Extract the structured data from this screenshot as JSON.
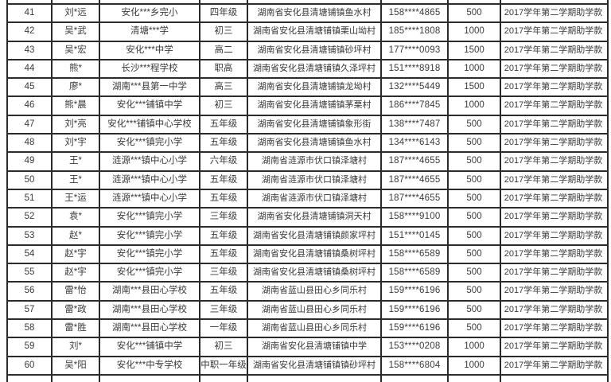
{
  "colors": {
    "table_border": "#2b2b2b",
    "cell_background": "#ffffff",
    "text": "#3a3a3a"
  },
  "table": {
    "row_count": 20,
    "remark_text": "2017学年第二学期助学款",
    "rows": [
      [
        "41",
        "刘*远",
        "安化***乡完小",
        "四年级",
        "湖南省安化县清塘铺镇鱼水村",
        "158****4865",
        "500",
        "2017学年第二学期助学款"
      ],
      [
        "42",
        "吴*武",
        "清塘***学",
        "初三",
        "湖南省安化县清塘铺镇栗山坳村",
        "185****1808",
        "1000",
        "2017学年第二学期助学款"
      ],
      [
        "43",
        "吴*宏",
        "安化***中学",
        "高二",
        "湖南省安化县清塘铺镇砂坪村",
        "177****0093",
        "1500",
        "2017学年第二学期助学款"
      ],
      [
        "44",
        "熊*",
        "长沙***程学校",
        "职高",
        "湖南省安化县清塘铺镇久泽坪村",
        "151****8918",
        "1000",
        "2017学年第二学期助学款"
      ],
      [
        "45",
        "廖*",
        "湖南***县第一中学",
        "高三",
        "湖南省安化县清塘铺镇龙坳村",
        "132****5449",
        "1500",
        "2017学年第二学期助学款"
      ],
      [
        "46",
        "熊*晨",
        "安化***铺镇中学",
        "初三",
        "湖南省安化县清塘铺镇茅栗村",
        "186****7845",
        "1000",
        "2017学年第二学期助学款"
      ],
      [
        "47",
        "刘*亮",
        "安化***铺镇中心学校",
        "五年级",
        "湖南省安化县清塘铺镇象形街",
        "138****7487",
        "500",
        "2017学年第二学期助学款"
      ],
      [
        "48",
        "刘*宇",
        "安化***镇完小学",
        "五年级",
        "湖南省安化县清塘铺镇鱼水村",
        "134****6143",
        "500",
        "2017学年第二学期助学款"
      ],
      [
        "49",
        "王*",
        "涟源***镇中心小学",
        "六年级",
        "湖南省涟源市伏口镇泽塘村",
        "187****4655",
        "500",
        "2017学年第二学期助学款"
      ],
      [
        "50",
        "王*",
        "涟源***镇中心小学",
        "五年级",
        "湖南省涟源市伏口镇泽塘村",
        "187****4655",
        "500",
        "2017学年第二学期助学款"
      ],
      [
        "51",
        "王*运",
        "涟源***镇中心小学",
        "五年级",
        "湖南省涟源市伏口镇泽塘村",
        "187****4655",
        "500",
        "2017学年第二学期助学款"
      ],
      [
        "52",
        "袁*",
        "安化***镇完小学",
        "三年级",
        "湖南省安化县清塘铺镇洞天村",
        "158****9100",
        "500",
        "2017学年第二学期助学款"
      ],
      [
        "53",
        "赵*",
        "安化***镇完小学",
        "五年级",
        "湖南省安化县清塘铺镇颜家坪村",
        "151****0145",
        "500",
        "2017学年第二学期助学款"
      ],
      [
        "54",
        "赵*宇",
        "安化***镇完小学",
        "五年级",
        "湖南省安化县清塘铺镇桑树坪村",
        "158****6589",
        "500",
        "2017学年第二学期助学款"
      ],
      [
        "55",
        "赵*宇",
        "安化***镇完小学",
        "三年级",
        "湖南省安化县清塘铺镇桑树坪村",
        "158****6589",
        "500",
        "2017学年第二学期助学款"
      ],
      [
        "56",
        "雷*怡",
        "湖南***县田心学校",
        "五年级",
        "湖南省蓝山县田心乡同乐村",
        "159****6196",
        "500",
        "2017学年第二学期助学款"
      ],
      [
        "57",
        "雷*政",
        "湖南***县田心学校",
        "三年级",
        "湖南省蓝山县田心乡同乐村",
        "159****6196",
        "500",
        "2017学年第二学期助学款"
      ],
      [
        "58",
        "雷*胜",
        "湖南***县田心学校",
        "一年级",
        "湖南省蓝山县田心乡同乐村",
        "159****6196",
        "500",
        "2017学年第二学期助学款"
      ],
      [
        "59",
        "刘*",
        "安化***铺镇中学",
        "初三",
        "湖南省安化县清塘铺镇中学",
        "153****0208",
        "1000",
        "2017学年第二学期助学款"
      ],
      [
        "60",
        "吴*阳",
        "安化***中专学校",
        "中职一年级",
        "湖南省安化县清塘铺镇镇砂坪村",
        "158****6804",
        "1000",
        "2017学年第二学期助学款"
      ]
    ]
  }
}
